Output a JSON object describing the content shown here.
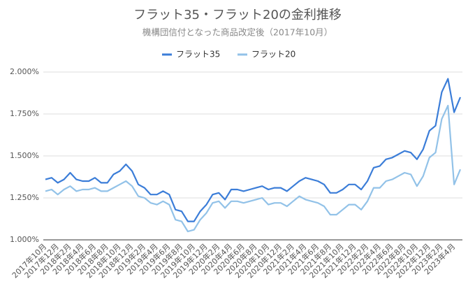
{
  "chart_data": {
    "type": "line",
    "title": "フラット35・フラット20の金利推移",
    "subtitle": "機構団信付となった商品改定後（2017年10月）",
    "categories": [
      "2017年10月",
      null,
      "2017年12月",
      null,
      "2018年2月",
      null,
      "2018年4月",
      null,
      "2018年6月",
      null,
      "2018年8月",
      null,
      "2018年10月",
      null,
      "2018年12月",
      null,
      "2019年2月",
      null,
      "2019年4月",
      null,
      "2019年6月",
      null,
      "2019年8月",
      null,
      "2019年10月",
      null,
      "2019年12月",
      null,
      "2020年2月",
      null,
      "2020年4月",
      null,
      "2020年6月",
      null,
      "2020年8月",
      null,
      "2020年10月",
      null,
      "2020年12月",
      null,
      "2021年2月",
      null,
      "2021年4月",
      null,
      "2021年6月",
      null,
      "2021年8月",
      null,
      "2021年10月",
      null,
      "2021年12月",
      null,
      "2022年2月",
      null,
      "2022年4月",
      null,
      "2022年6月",
      null,
      "2022年8月",
      null,
      "2022年10月",
      null,
      "2022年12月",
      null,
      "2023年2月",
      null,
      "2023年4月",
      null
    ],
    "series": [
      {
        "name": "フラット35",
        "color": "#3b7dd8",
        "values": [
          1.36,
          1.37,
          1.34,
          1.36,
          1.4,
          1.36,
          1.35,
          1.35,
          1.37,
          1.34,
          1.34,
          1.39,
          1.41,
          1.45,
          1.41,
          1.33,
          1.31,
          1.27,
          1.27,
          1.29,
          1.27,
          1.18,
          1.17,
          1.11,
          1.11,
          1.17,
          1.21,
          1.27,
          1.28,
          1.24,
          1.3,
          1.3,
          1.29,
          1.3,
          1.31,
          1.32,
          1.3,
          1.31,
          1.31,
          1.29,
          1.32,
          1.35,
          1.37,
          1.36,
          1.35,
          1.33,
          1.28,
          1.28,
          1.3,
          1.33,
          1.33,
          1.3,
          1.35,
          1.43,
          1.44,
          1.48,
          1.49,
          1.51,
          1.53,
          1.52,
          1.48,
          1.54,
          1.65,
          1.68,
          1.88,
          1.96,
          1.76,
          1.85
        ]
      },
      {
        "name": "フラット20",
        "color": "#92c2e8",
        "values": [
          1.29,
          1.3,
          1.27,
          1.3,
          1.32,
          1.29,
          1.3,
          1.3,
          1.31,
          1.29,
          1.29,
          1.31,
          1.33,
          1.35,
          1.32,
          1.26,
          1.25,
          1.22,
          1.21,
          1.23,
          1.21,
          1.12,
          1.11,
          1.05,
          1.06,
          1.12,
          1.16,
          1.22,
          1.23,
          1.19,
          1.23,
          1.23,
          1.22,
          1.23,
          1.24,
          1.25,
          1.21,
          1.22,
          1.22,
          1.2,
          1.23,
          1.26,
          1.24,
          1.23,
          1.22,
          1.2,
          1.15,
          1.15,
          1.18,
          1.21,
          1.21,
          1.18,
          1.23,
          1.31,
          1.31,
          1.35,
          1.36,
          1.38,
          1.4,
          1.39,
          1.32,
          1.38,
          1.49,
          1.52,
          1.72,
          1.8,
          1.33,
          1.42
        ]
      }
    ],
    "ylim": [
      1.0,
      2.0
    ],
    "yticks": [
      {
        "value": 1.0,
        "label": "1.000%"
      },
      {
        "value": 1.25,
        "label": "1.250%"
      },
      {
        "value": 1.5,
        "label": "1.500%"
      },
      {
        "value": 1.75,
        "label": "1.750%"
      },
      {
        "value": 2.0,
        "label": "2.000%"
      }
    ],
    "grid": true,
    "legend": "top"
  }
}
